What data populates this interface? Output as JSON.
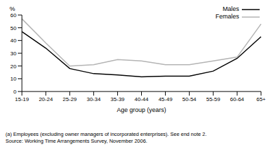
{
  "chart_data": {
    "type": "line",
    "y_label": "%",
    "x_label": "Age group (years)",
    "categories": [
      "15-19",
      "20-24",
      "25-29",
      "30-34",
      "35-39",
      "40-44",
      "45-49",
      "50-54",
      "55-59",
      "60-64",
      "65+"
    ],
    "series": [
      {
        "name": "Males",
        "color": "#000000",
        "values": [
          47,
          34,
          18,
          14,
          13,
          11.5,
          12,
          12,
          16,
          26,
          43
        ]
      },
      {
        "name": "Females",
        "color": "#b3b3b3",
        "values": [
          57,
          38,
          20,
          21,
          25,
          24,
          21,
          21,
          24,
          27,
          53
        ]
      }
    ],
    "ylim": [
      0,
      60
    ],
    "yticks": [
      0,
      10,
      20,
      30,
      40,
      50,
      60
    ],
    "grid": false,
    "legend": "upper right",
    "annotations": [
      "(a) Employees (excluding owner managers of incorporated enterprises). See end note 2.",
      "Source: Working Time Arrangements Survey, November 2006."
    ]
  }
}
